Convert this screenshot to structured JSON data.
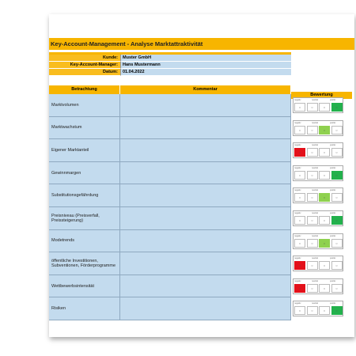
{
  "header": {
    "title": "Key-Account-Management - Analyse Marktattraktivität"
  },
  "info": [
    {
      "label": "Kunde:",
      "value": "Muster GmbH"
    },
    {
      "label": "Key-Account-Manager:",
      "value": "Hans Mustermann"
    },
    {
      "label": "Datum:",
      "value": "01.04.2022"
    }
  ],
  "table": {
    "columns": [
      "Betrachtung",
      "Kommentar",
      "Bewertung"
    ],
    "scale": [
      "negativ",
      "neutral",
      "positiv"
    ],
    "rows": [
      {
        "label": "Marktvolumen",
        "rating": 4
      },
      {
        "label": "Marktwachstum",
        "rating": 3
      },
      {
        "label": "Eigener Marktanteil",
        "rating": 1
      },
      {
        "label": "Gewinnmargen",
        "rating": 4
      },
      {
        "label": "Substitutionsgefährdung",
        "rating": 3
      },
      {
        "label": "Preisniveau (Preisverfall, Preissteigerung)",
        "rating": 4
      },
      {
        "label": "Modetrends",
        "rating": 3
      },
      {
        "label": "öffentliche Investitionen, Subventionen, Förderprogramme",
        "rating": 1
      },
      {
        "label": "Wettbewerbsintensität",
        "rating": 1
      },
      {
        "label": "Risiken",
        "rating": 4
      }
    ]
  }
}
